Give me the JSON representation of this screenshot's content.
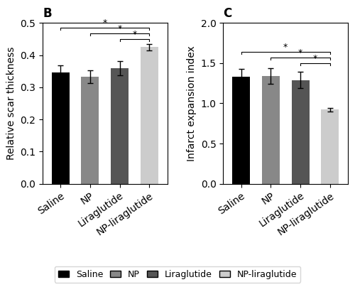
{
  "chart_data": [
    {
      "type": "bar",
      "title": "B",
      "categories": [
        "Saline",
        "NP",
        "Liraglutide",
        "NP-liraglutide"
      ],
      "values": [
        0.345,
        0.333,
        0.36,
        0.425
      ],
      "errors": [
        0.022,
        0.02,
        0.022,
        0.01
      ],
      "colors": [
        "#000000",
        "#888888",
        "#555555",
        "#cccccc"
      ],
      "y_label": "Relative scar thickness",
      "ylim": [
        0.0,
        0.5
      ],
      "yticks": [
        0.0,
        0.1,
        0.2,
        0.3,
        0.4,
        0.5
      ],
      "legend": "lower center",
      "annotations": [
        {
          "from": "Saline",
          "to": "NP-liraglutide",
          "text": "*"
        },
        {
          "from": "NP",
          "to": "NP-liraglutide",
          "text": "*"
        },
        {
          "from": "Liraglutide",
          "to": "NP-liraglutide",
          "text": "*"
        }
      ]
    },
    {
      "type": "bar",
      "title": "C",
      "categories": [
        "Saline",
        "NP",
        "Liraglutide",
        "NP-liraglutide"
      ],
      "values": [
        1.33,
        1.34,
        1.29,
        0.92
      ],
      "errors": [
        0.1,
        0.1,
        0.1,
        0.025
      ],
      "colors": [
        "#000000",
        "#888888",
        "#555555",
        "#cccccc"
      ],
      "y_label": "Infarct expansion index",
      "ylim": [
        0.0,
        2.0
      ],
      "yticks": [
        0.0,
        0.5,
        1.0,
        1.5,
        2.0
      ],
      "annotations": [
        {
          "from": "Saline",
          "to": "NP-liraglutide",
          "text": "*"
        },
        {
          "from": "NP",
          "to": "NP-liraglutide",
          "text": "*"
        },
        {
          "from": "Liraglutide",
          "to": "NP-liraglutide",
          "text": "*"
        }
      ]
    }
  ]
}
